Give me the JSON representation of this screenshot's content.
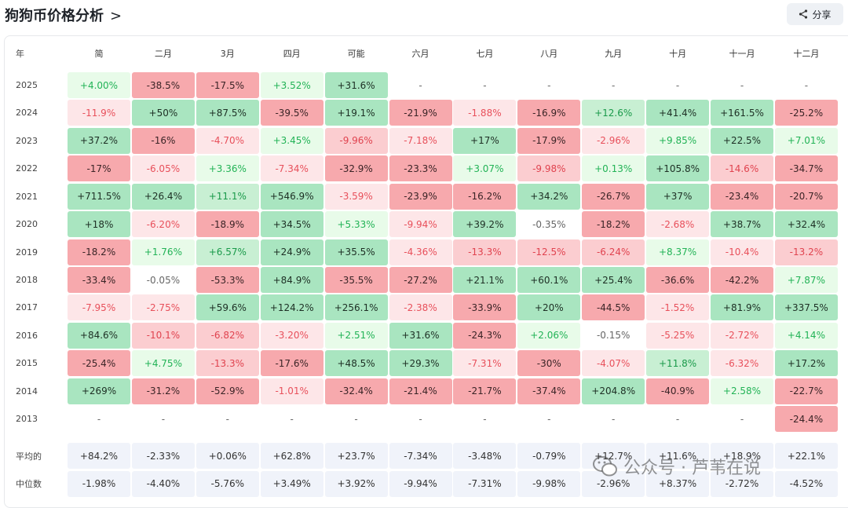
{
  "title": "狗狗币价格分析",
  "share_label": "分享",
  "year_header": "年",
  "months": [
    "简",
    "二月",
    "3月",
    "四月",
    "可能",
    "六月",
    "七月",
    "八月",
    "九月",
    "十月",
    "十一月",
    "十二月"
  ],
  "rows": [
    {
      "year": "2025",
      "cells": [
        [
          "+4.00%",
          "g1"
        ],
        [
          "-38.5%",
          "r3"
        ],
        [
          "-17.5%",
          "r3"
        ],
        [
          "+3.52%",
          "g1"
        ],
        [
          "+31.6%",
          "g3"
        ],
        [
          "-",
          "n"
        ],
        [
          "-",
          "n"
        ],
        [
          "-",
          "n"
        ],
        [
          "-",
          "n"
        ],
        [
          "-",
          "n"
        ],
        [
          "-",
          "n"
        ],
        [
          "-",
          "n"
        ]
      ]
    },
    {
      "year": "2024",
      "cells": [
        [
          "-11.9%",
          "r1"
        ],
        [
          "+50%",
          "g3"
        ],
        [
          "+87.5%",
          "g3"
        ],
        [
          "-39.5%",
          "r3"
        ],
        [
          "+19.1%",
          "g3"
        ],
        [
          "-21.9%",
          "r3"
        ],
        [
          "-1.88%",
          "r1"
        ],
        [
          "-16.9%",
          "r3"
        ],
        [
          "+12.6%",
          "g2"
        ],
        [
          "+41.4%",
          "g3"
        ],
        [
          "+161.5%",
          "g3"
        ],
        [
          "-25.2%",
          "r3"
        ]
      ]
    },
    {
      "year": "2023",
      "cells": [
        [
          "+37.2%",
          "g3"
        ],
        [
          "-16%",
          "r3"
        ],
        [
          "-4.70%",
          "r1"
        ],
        [
          "+3.45%",
          "g1"
        ],
        [
          "-9.96%",
          "r2"
        ],
        [
          "-7.18%",
          "r1"
        ],
        [
          "+17%",
          "g3"
        ],
        [
          "-17.9%",
          "r3"
        ],
        [
          "-2.96%",
          "r1"
        ],
        [
          "+9.85%",
          "g1"
        ],
        [
          "+22.5%",
          "g3"
        ],
        [
          "+7.01%",
          "g1"
        ]
      ]
    },
    {
      "year": "2022",
      "cells": [
        [
          "-17%",
          "r3"
        ],
        [
          "-6.05%",
          "r1"
        ],
        [
          "+3.36%",
          "g1"
        ],
        [
          "-7.34%",
          "r1"
        ],
        [
          "-32.9%",
          "r3"
        ],
        [
          "-23.3%",
          "r3"
        ],
        [
          "+3.07%",
          "g1"
        ],
        [
          "-9.98%",
          "r2"
        ],
        [
          "+0.13%",
          "g1"
        ],
        [
          "+105.8%",
          "g3"
        ],
        [
          "-14.6%",
          "r2"
        ],
        [
          "-34.7%",
          "r3"
        ]
      ]
    },
    {
      "year": "2021",
      "cells": [
        [
          "+711.5%",
          "g3"
        ],
        [
          "+26.4%",
          "g3"
        ],
        [
          "+11.1%",
          "g2"
        ],
        [
          "+546.9%",
          "g3"
        ],
        [
          "-3.59%",
          "r1"
        ],
        [
          "-23.9%",
          "r3"
        ],
        [
          "-16.2%",
          "r3"
        ],
        [
          "+34.2%",
          "g3"
        ],
        [
          "-26.7%",
          "r3"
        ],
        [
          "+37%",
          "g3"
        ],
        [
          "-23.4%",
          "r3"
        ],
        [
          "-20.7%",
          "r3"
        ]
      ]
    },
    {
      "year": "2020",
      "cells": [
        [
          "+18%",
          "g3"
        ],
        [
          "-6.20%",
          "r1"
        ],
        [
          "-18.9%",
          "r3"
        ],
        [
          "+34.5%",
          "g3"
        ],
        [
          "+5.33%",
          "g1"
        ],
        [
          "-9.94%",
          "r1"
        ],
        [
          "+39.2%",
          "g3"
        ],
        [
          "-0.35%",
          "n"
        ],
        [
          "-18.2%",
          "r3"
        ],
        [
          "-2.68%",
          "r1"
        ],
        [
          "+38.7%",
          "g3"
        ],
        [
          "+32.4%",
          "g3"
        ]
      ]
    },
    {
      "year": "2019",
      "cells": [
        [
          "-18.2%",
          "r3"
        ],
        [
          "+1.76%",
          "g1"
        ],
        [
          "+6.57%",
          "g2"
        ],
        [
          "+24.9%",
          "g3"
        ],
        [
          "+35.5%",
          "g3"
        ],
        [
          "-4.36%",
          "r1"
        ],
        [
          "-13.3%",
          "r2"
        ],
        [
          "-12.5%",
          "r2"
        ],
        [
          "-6.24%",
          "r2"
        ],
        [
          "+8.37%",
          "g1"
        ],
        [
          "-10.4%",
          "r1"
        ],
        [
          "-13.2%",
          "r2"
        ]
      ]
    },
    {
      "year": "2018",
      "cells": [
        [
          "-33.4%",
          "r3"
        ],
        [
          "-0.05%",
          "n"
        ],
        [
          "-53.3%",
          "r3"
        ],
        [
          "+84.9%",
          "g3"
        ],
        [
          "-35.5%",
          "r3"
        ],
        [
          "-27.2%",
          "r3"
        ],
        [
          "+21.1%",
          "g3"
        ],
        [
          "+60.1%",
          "g3"
        ],
        [
          "+25.4%",
          "g3"
        ],
        [
          "-36.6%",
          "r3"
        ],
        [
          "-42.2%",
          "r3"
        ],
        [
          "+7.87%",
          "g1"
        ]
      ]
    },
    {
      "year": "2017",
      "cells": [
        [
          "-7.95%",
          "r1"
        ],
        [
          "-2.75%",
          "r1"
        ],
        [
          "+59.6%",
          "g3"
        ],
        [
          "+124.2%",
          "g3"
        ],
        [
          "+256.1%",
          "g3"
        ],
        [
          "-2.38%",
          "r1"
        ],
        [
          "-33.9%",
          "r3"
        ],
        [
          "+20%",
          "g3"
        ],
        [
          "-44.5%",
          "r3"
        ],
        [
          "-1.52%",
          "r1"
        ],
        [
          "+81.9%",
          "g3"
        ],
        [
          "+337.5%",
          "g3"
        ]
      ]
    },
    {
      "year": "2016",
      "cells": [
        [
          "+84.6%",
          "g3"
        ],
        [
          "-10.1%",
          "r2"
        ],
        [
          "-6.82%",
          "r2"
        ],
        [
          "-3.20%",
          "r1"
        ],
        [
          "+2.51%",
          "g1"
        ],
        [
          "+31.6%",
          "g3"
        ],
        [
          "-24.3%",
          "r3"
        ],
        [
          "+2.06%",
          "g1"
        ],
        [
          "-0.15%",
          "n"
        ],
        [
          "-5.25%",
          "r1"
        ],
        [
          "-2.72%",
          "r1"
        ],
        [
          "+4.14%",
          "g1"
        ]
      ]
    },
    {
      "year": "2015",
      "cells": [
        [
          "-25.4%",
          "r3"
        ],
        [
          "+4.75%",
          "g1"
        ],
        [
          "-13.3%",
          "r2"
        ],
        [
          "-17.6%",
          "r3"
        ],
        [
          "+48.5%",
          "g3"
        ],
        [
          "+29.3%",
          "g3"
        ],
        [
          "-7.31%",
          "r1"
        ],
        [
          "-30%",
          "r3"
        ],
        [
          "-4.07%",
          "r1"
        ],
        [
          "+11.8%",
          "g2"
        ],
        [
          "-6.32%",
          "r1"
        ],
        [
          "+17.2%",
          "g3"
        ]
      ]
    },
    {
      "year": "2014",
      "cells": [
        [
          "+269%",
          "g3"
        ],
        [
          "-31.2%",
          "r3"
        ],
        [
          "-52.9%",
          "r3"
        ],
        [
          "-1.01%",
          "r1"
        ],
        [
          "-32.4%",
          "r3"
        ],
        [
          "-21.4%",
          "r3"
        ],
        [
          "-21.7%",
          "r3"
        ],
        [
          "-37.4%",
          "r3"
        ],
        [
          "+204.8%",
          "g3"
        ],
        [
          "-40.9%",
          "r3"
        ],
        [
          "+2.58%",
          "g1"
        ],
        [
          "-22.7%",
          "r3"
        ]
      ]
    },
    {
      "year": "2013",
      "cells": [
        [
          "-",
          "n"
        ],
        [
          "-",
          "n"
        ],
        [
          "-",
          "n"
        ],
        [
          "-",
          "n"
        ],
        [
          "-",
          "n"
        ],
        [
          "-",
          "n"
        ],
        [
          "-",
          "n"
        ],
        [
          "-",
          "n"
        ],
        [
          "-",
          "n"
        ],
        [
          "-",
          "n"
        ],
        [
          "-",
          "n"
        ],
        [
          "-24.4%",
          "r3"
        ]
      ]
    }
  ],
  "summary": [
    {
      "label": "平均的",
      "cells": [
        "+84.2%",
        "-2.33%",
        "+0.06%",
        "+62.8%",
        "+23.7%",
        "-7.34%",
        "-3.48%",
        "-0.79%",
        "+12.7%",
        "+11.6%",
        "+18.9%",
        "+22.1%"
      ]
    },
    {
      "label": "中位数",
      "cells": [
        "-1.98%",
        "-4.40%",
        "-5.76%",
        "+3.49%",
        "+3.92%",
        "-9.94%",
        "-7.31%",
        "-9.98%",
        "-2.96%",
        "+8.37%",
        "-2.72%",
        "-4.52%"
      ]
    }
  ],
  "watermark": "公众号 · 芦苇在说"
}
